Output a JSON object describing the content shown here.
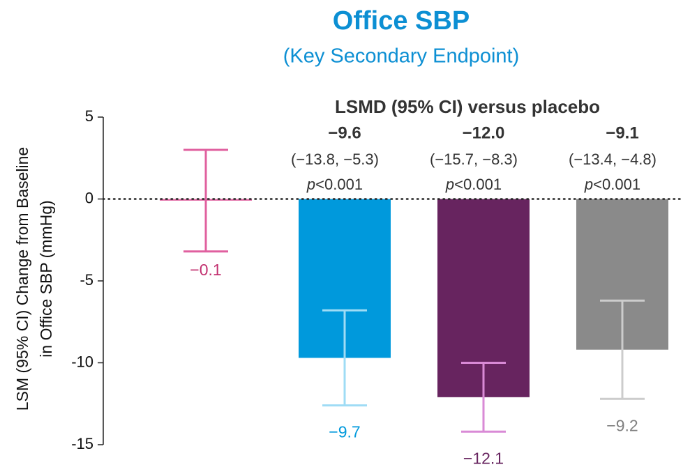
{
  "chart_data": {
    "type": "bar",
    "title": "Office SBP",
    "subtitle": "(Key Secondary Endpoint)",
    "ylabel": [
      "LSM (95% CI) Change from Baseline",
      "in Office SBP (mmHg)"
    ],
    "categories": [
      null,
      null,
      null,
      null
    ],
    "values": [
      -0.1,
      -9.7,
      -12.1,
      -9.2
    ],
    "value_labels": [
      "−0.1",
      "−9.7",
      "−12.1",
      "−9.2"
    ],
    "ci_upper": [
      3.0,
      -6.8,
      -10.0,
      -6.2
    ],
    "ci_lower": [
      -3.2,
      -12.6,
      -14.2,
      -12.2
    ],
    "colors": [
      "#e0609f",
      "#0099dc",
      "#67245f",
      "#8a8a8a"
    ],
    "errorbar_colors": [
      "#e0609f",
      "#9fdcf5",
      "#d98ad6",
      "#cccccc"
    ],
    "label_colors": [
      "#c2306f",
      "#0099dc",
      "#67245f",
      "#808080"
    ],
    "ylim": [
      -15,
      5
    ],
    "yticks": [
      5,
      0,
      -5,
      -10,
      -15
    ],
    "annotation_title": "LSMD (95% CI) versus placebo",
    "annotations": [
      {
        "lsmd": "−9.6",
        "ci": "(−13.8, −5.3)",
        "p": "p<0.001"
      },
      {
        "lsmd": "−12.0",
        "ci": "(−15.7, −8.3)",
        "p": "p<0.001"
      },
      {
        "lsmd": "−9.1",
        "ci": "(−13.4, −4.8)",
        "p": "p<0.001"
      }
    ]
  }
}
